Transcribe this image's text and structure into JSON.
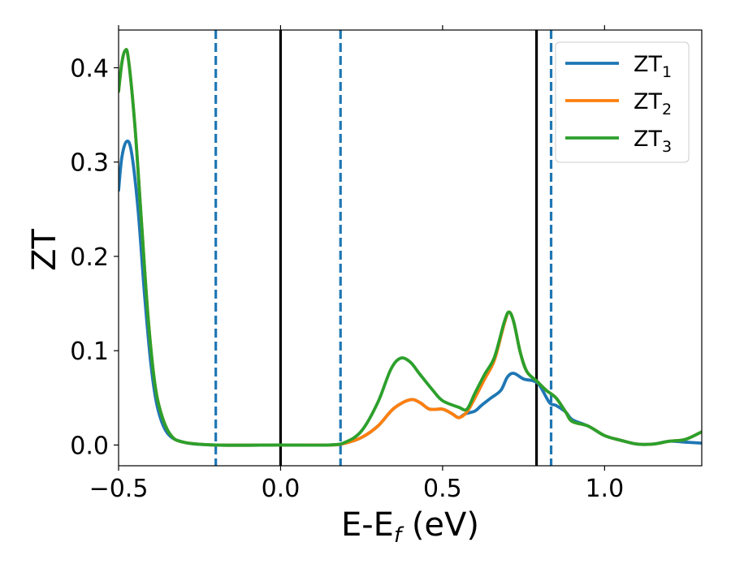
{
  "chart_data": {
    "type": "line",
    "xlabel": "E-E_f (eV)",
    "xlabel_parts": {
      "main": "E-E",
      "sub": "f",
      "tail": " (eV)"
    },
    "ylabel": "ZT",
    "xlim": [
      -0.5,
      1.3
    ],
    "ylim": [
      -0.022,
      0.44
    ],
    "xticks": [
      -0.5,
      0.0,
      0.5,
      1.0
    ],
    "xtick_labels": [
      "−0.5",
      "0.0",
      "0.5",
      "1.0"
    ],
    "yticks": [
      0.0,
      0.1,
      0.2,
      0.3,
      0.4
    ],
    "ytick_labels": [
      "0.0",
      "0.1",
      "0.2",
      "0.3",
      "0.4"
    ],
    "grid": false,
    "legend_position": "top-right",
    "vlines": [
      {
        "x": 0.0,
        "style": "solid",
        "color": "#000000"
      },
      {
        "x": 0.79,
        "style": "solid",
        "color": "#000000"
      },
      {
        "x": -0.2,
        "style": "dashed",
        "color": "#1f77b4"
      },
      {
        "x": 0.185,
        "style": "dashed",
        "color": "#1f77b4"
      },
      {
        "x": 0.835,
        "style": "dashed",
        "color": "#1f77b4"
      }
    ],
    "series": [
      {
        "name": "ZT_1",
        "label_main": "ZT",
        "label_sub": "1",
        "color": "#1f77b4",
        "points": [
          [
            -0.5,
            0.27
          ],
          [
            -0.49,
            0.305
          ],
          [
            -0.475,
            0.322
          ],
          [
            -0.46,
            0.31
          ],
          [
            -0.44,
            0.25
          ],
          [
            -0.42,
            0.16
          ],
          [
            -0.4,
            0.085
          ],
          [
            -0.38,
            0.04
          ],
          [
            -0.35,
            0.013
          ],
          [
            -0.3,
            0.003
          ],
          [
            -0.2,
            0.0
          ],
          [
            0.0,
            0.0
          ],
          [
            0.15,
            0.0
          ],
          [
            0.2,
            0.002
          ],
          [
            0.25,
            0.008
          ],
          [
            0.3,
            0.02
          ],
          [
            0.35,
            0.039
          ],
          [
            0.4,
            0.048
          ],
          [
            0.43,
            0.045
          ],
          [
            0.46,
            0.038
          ],
          [
            0.5,
            0.038
          ],
          [
            0.53,
            0.033
          ],
          [
            0.55,
            0.029
          ],
          [
            0.57,
            0.033
          ],
          [
            0.6,
            0.036
          ],
          [
            0.62,
            0.042
          ],
          [
            0.65,
            0.05
          ],
          [
            0.68,
            0.058
          ],
          [
            0.7,
            0.072
          ],
          [
            0.72,
            0.076
          ],
          [
            0.75,
            0.07
          ],
          [
            0.78,
            0.068
          ],
          [
            0.8,
            0.063
          ],
          [
            0.83,
            0.045
          ],
          [
            0.85,
            0.042
          ],
          [
            0.88,
            0.035
          ],
          [
            0.9,
            0.027
          ],
          [
            0.95,
            0.02
          ],
          [
            1.0,
            0.01
          ],
          [
            1.05,
            0.005
          ],
          [
            1.1,
            0.001
          ],
          [
            1.15,
            0.001
          ],
          [
            1.2,
            0.004
          ],
          [
            1.25,
            0.003
          ],
          [
            1.3,
            0.002
          ]
        ]
      },
      {
        "name": "ZT_2",
        "label_main": "ZT",
        "label_sub": "2",
        "color": "#ff7f0e",
        "points": [
          [
            -0.5,
            0.375
          ],
          [
            -0.49,
            0.405
          ],
          [
            -0.48,
            0.418
          ],
          [
            -0.47,
            0.41
          ],
          [
            -0.45,
            0.34
          ],
          [
            -0.43,
            0.24
          ],
          [
            -0.41,
            0.14
          ],
          [
            -0.39,
            0.07
          ],
          [
            -0.37,
            0.035
          ],
          [
            -0.34,
            0.011
          ],
          [
            -0.3,
            0.003
          ],
          [
            -0.2,
            0.0
          ],
          [
            0.0,
            0.0
          ],
          [
            0.15,
            0.0
          ],
          [
            0.2,
            0.002
          ],
          [
            0.25,
            0.008
          ],
          [
            0.3,
            0.02
          ],
          [
            0.35,
            0.039
          ],
          [
            0.4,
            0.048
          ],
          [
            0.43,
            0.045
          ],
          [
            0.46,
            0.038
          ],
          [
            0.5,
            0.038
          ],
          [
            0.53,
            0.033
          ],
          [
            0.55,
            0.029
          ],
          [
            0.575,
            0.035
          ],
          [
            0.6,
            0.05
          ],
          [
            0.63,
            0.07
          ],
          [
            0.66,
            0.09
          ],
          [
            0.69,
            0.128
          ],
          [
            0.705,
            0.141
          ],
          [
            0.72,
            0.13
          ],
          [
            0.74,
            0.098
          ],
          [
            0.76,
            0.078
          ],
          [
            0.79,
            0.068
          ],
          [
            0.82,
            0.058
          ],
          [
            0.85,
            0.05
          ],
          [
            0.88,
            0.035
          ],
          [
            0.9,
            0.025
          ],
          [
            0.95,
            0.02
          ],
          [
            1.0,
            0.01
          ],
          [
            1.05,
            0.005
          ],
          [
            1.1,
            0.001
          ],
          [
            1.15,
            0.001
          ],
          [
            1.2,
            0.004
          ],
          [
            1.25,
            0.006
          ],
          [
            1.3,
            0.014
          ]
        ]
      },
      {
        "name": "ZT_3",
        "label_main": "ZT",
        "label_sub": "3",
        "color": "#2ca02c",
        "points": [
          [
            -0.5,
            0.375
          ],
          [
            -0.49,
            0.405
          ],
          [
            -0.48,
            0.418
          ],
          [
            -0.47,
            0.41
          ],
          [
            -0.45,
            0.34
          ],
          [
            -0.43,
            0.24
          ],
          [
            -0.41,
            0.14
          ],
          [
            -0.39,
            0.07
          ],
          [
            -0.37,
            0.035
          ],
          [
            -0.34,
            0.011
          ],
          [
            -0.3,
            0.003
          ],
          [
            -0.2,
            0.0
          ],
          [
            0.0,
            0.0
          ],
          [
            0.15,
            0.0
          ],
          [
            0.2,
            0.003
          ],
          [
            0.25,
            0.015
          ],
          [
            0.3,
            0.045
          ],
          [
            0.34,
            0.08
          ],
          [
            0.37,
            0.092
          ],
          [
            0.4,
            0.088
          ],
          [
            0.43,
            0.075
          ],
          [
            0.47,
            0.058
          ],
          [
            0.5,
            0.047
          ],
          [
            0.55,
            0.04
          ],
          [
            0.575,
            0.038
          ],
          [
            0.6,
            0.055
          ],
          [
            0.63,
            0.075
          ],
          [
            0.66,
            0.093
          ],
          [
            0.69,
            0.13
          ],
          [
            0.705,
            0.141
          ],
          [
            0.72,
            0.13
          ],
          [
            0.74,
            0.098
          ],
          [
            0.76,
            0.078
          ],
          [
            0.79,
            0.068
          ],
          [
            0.82,
            0.058
          ],
          [
            0.85,
            0.05
          ],
          [
            0.88,
            0.035
          ],
          [
            0.9,
            0.025
          ],
          [
            0.95,
            0.02
          ],
          [
            1.0,
            0.01
          ],
          [
            1.05,
            0.005
          ],
          [
            1.1,
            0.001
          ],
          [
            1.15,
            0.001
          ],
          [
            1.2,
            0.004
          ],
          [
            1.25,
            0.006
          ],
          [
            1.3,
            0.014
          ]
        ]
      }
    ]
  }
}
